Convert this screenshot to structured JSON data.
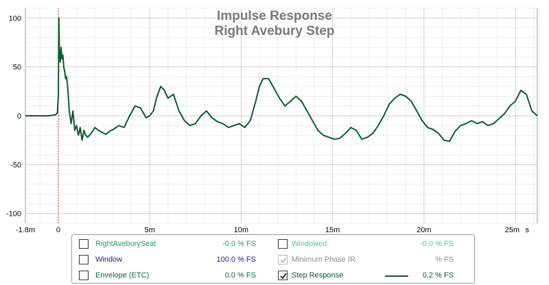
{
  "chart_data": {
    "type": "line",
    "title": "Impulse Response",
    "subtitle": "Right Avebury Step",
    "xlabel": "",
    "ylabel": "",
    "xlim": [
      -1.8,
      26.2
    ],
    "ylim": [
      -110,
      110
    ],
    "x_ticks": [
      {
        "value": -1.8,
        "label": "-1.8m"
      },
      {
        "value": 0,
        "label": "0"
      },
      {
        "value": 5,
        "label": "5m"
      },
      {
        "value": 10,
        "label": "10m"
      },
      {
        "value": 15,
        "label": "15m"
      },
      {
        "value": 20,
        "label": "20m"
      },
      {
        "value": 25,
        "label": "25m"
      },
      {
        "value": 26.2,
        "label": "s"
      }
    ],
    "y_ticks": [
      {
        "value": 100,
        "label": "100"
      },
      {
        "value": 50,
        "label": "50"
      },
      {
        "value": 0,
        "label": "0"
      },
      {
        "value": -50,
        "label": "-50"
      },
      {
        "value": -100,
        "label": "-100"
      }
    ],
    "grid": true,
    "marker_line_x": 0,
    "series": [
      {
        "color": "#0b5a2e",
        "x": [
          -1.8,
          -0.5,
          -0.15,
          -0.05,
          0,
          0.03,
          0.06,
          0.1,
          0.15,
          0.2,
          0.25,
          0.3,
          0.35,
          0.4,
          0.45,
          0.5,
          0.55,
          0.6,
          0.7,
          0.8,
          0.9,
          1.0,
          1.1,
          1.2,
          1.3,
          1.4,
          1.5,
          1.6,
          1.8,
          2.0,
          2.2,
          2.4,
          2.6,
          2.8,
          3.0,
          3.3,
          3.6,
          3.9,
          4.2,
          4.5,
          4.8,
          5.0,
          5.2,
          5.4,
          5.6,
          5.8,
          6.0,
          6.3,
          6.6,
          6.9,
          7.2,
          7.5,
          7.8,
          8.1,
          8.4,
          8.7,
          9.0,
          9.3,
          9.6,
          9.9,
          10.2,
          10.5,
          10.8,
          11.0,
          11.2,
          11.5,
          11.8,
          12.1,
          12.4,
          12.7,
          13.0,
          13.3,
          13.6,
          13.9,
          14.2,
          14.5,
          14.8,
          15.1,
          15.4,
          15.7,
          16.0,
          16.3,
          16.6,
          16.9,
          17.2,
          17.5,
          17.8,
          18.1,
          18.4,
          18.7,
          19.0,
          19.3,
          19.6,
          19.9,
          20.2,
          20.5,
          20.8,
          21.1,
          21.4,
          21.7,
          22.0,
          22.3,
          22.6,
          22.9,
          23.2,
          23.5,
          23.8,
          24.1,
          24.4,
          24.7,
          25.0,
          25.3,
          25.6,
          25.9,
          26.2
        ],
        "values": [
          0,
          0,
          1,
          3,
          20,
          100,
          65,
          55,
          70,
          58,
          62,
          50,
          45,
          38,
          40,
          32,
          20,
          5,
          -8,
          5,
          -15,
          -10,
          -20,
          -12,
          -25,
          -15,
          -20,
          -22,
          -18,
          -12,
          -15,
          -17,
          -19,
          -16,
          -14,
          -10,
          -12,
          0,
          10,
          8,
          -2,
          0,
          5,
          20,
          30,
          26,
          18,
          22,
          5,
          -5,
          -10,
          -8,
          0,
          5,
          -2,
          -6,
          -8,
          -12,
          -10,
          -8,
          -12,
          -5,
          15,
          30,
          38,
          38,
          28,
          18,
          10,
          15,
          20,
          15,
          5,
          -5,
          -15,
          -20,
          -22,
          -24,
          -23,
          -18,
          -12,
          -15,
          -24,
          -22,
          -18,
          -10,
          0,
          12,
          18,
          22,
          20,
          15,
          5,
          -5,
          -12,
          -14,
          -18,
          -25,
          -26,
          -16,
          -10,
          -8,
          -5,
          -8,
          -6,
          -10,
          -8,
          -3,
          2,
          10,
          15,
          26,
          22,
          5,
          0
        ]
      }
    ]
  },
  "legend": {
    "items": [
      {
        "label": "RightAveburySeat",
        "value": "-0.0 % FS",
        "checked": false,
        "enabled": true,
        "color": "#2e9b6a"
      },
      {
        "label": "Windowed",
        "value": "-0.0 % FS",
        "checked": false,
        "enabled": true,
        "color": "#3ed47a"
      },
      {
        "label": "Window",
        "value": "100.0 % FS",
        "checked": false,
        "enabled": true,
        "color": "#1a1a99"
      },
      {
        "label": "Minimum Phase IR",
        "value": "% FS",
        "checked": true,
        "enabled": false,
        "color": "#8a8a8a"
      },
      {
        "label": "Envelope (ETC)",
        "value": "0.0 % FS",
        "checked": false,
        "enabled": true,
        "color": "#0e6b3a"
      },
      {
        "label": "Step Response",
        "value": "0.2 % FS",
        "checked": true,
        "enabled": true,
        "color": "#0b5a2e"
      }
    ]
  }
}
